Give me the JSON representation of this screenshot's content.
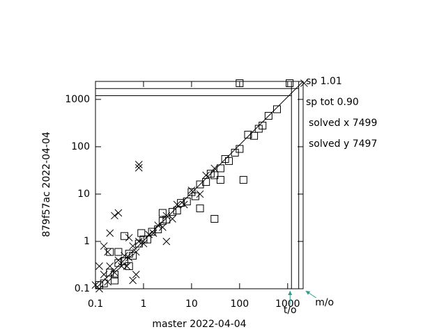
{
  "chart_data": {
    "type": "scatter",
    "xlabel": "master 2022-04-04",
    "ylabel": "879f57ac 2022-04-04",
    "log_scale": true,
    "xlim": [
      0.1,
      2100
    ],
    "ylim": [
      0.1,
      2400
    ],
    "xticks": [
      0.1,
      1,
      10,
      100,
      1000
    ],
    "yticks": [
      0.1,
      1,
      10,
      100,
      1000
    ],
    "timeout": 1200,
    "timeout_label": "t/o",
    "memout": 1700,
    "memout_label": "m/o",
    "annotations": [
      "sp 1.01",
      "sp tot 0.90",
      "solved x 7499",
      "solved y 7497"
    ],
    "series": [
      {
        "marker": "square",
        "color": "#000000",
        "x": [
          0.12,
          0.15,
          0.2,
          0.25,
          0.3,
          0.4,
          0.5,
          0.6,
          0.8,
          1,
          1.2,
          1.5,
          2,
          2.5,
          3,
          4,
          5,
          6,
          8,
          10,
          12,
          15,
          20,
          25,
          30,
          40,
          50,
          60,
          80,
          100,
          150,
          200,
          300,
          400,
          600,
          120,
          30,
          15,
          0.4,
          0.3,
          0.25,
          0.2,
          0.5,
          100,
          1100,
          0.9,
          2.5,
          40,
          250
        ],
        "values": [
          0.12,
          0.13,
          0.22,
          0.2,
          0.35,
          0.38,
          0.55,
          0.5,
          0.9,
          1.1,
          1.1,
          1.6,
          1.8,
          2.7,
          2.9,
          4.2,
          4.5,
          6.5,
          7,
          11,
          9,
          16,
          18,
          27,
          25,
          35,
          55,
          50,
          75,
          90,
          180,
          170,
          280,
          450,
          620,
          20,
          3,
          5,
          1.3,
          0.6,
          0.15,
          0.6,
          0.3,
          2200,
          2200,
          1.5,
          4,
          20,
          240
        ]
      },
      {
        "marker": "x",
        "color": "#000000",
        "x": [
          0.1,
          0.12,
          0.15,
          0.18,
          0.2,
          0.25,
          0.3,
          0.35,
          0.4,
          0.5,
          0.6,
          0.7,
          0.8,
          1,
          1.3,
          1.6,
          2,
          2.5,
          3,
          4,
          5,
          7,
          10,
          15,
          20,
          30,
          0.8,
          0.8,
          0.3,
          0.25,
          0.2,
          0.15,
          0.7,
          0.6,
          0.45,
          2200,
          3,
          0.12,
          0.18,
          0.5
        ],
        "values": [
          0.12,
          0.1,
          0.2,
          0.14,
          0.3,
          0.22,
          0.4,
          0.3,
          0.5,
          0.45,
          0.8,
          0.6,
          1,
          0.9,
          1.4,
          1.5,
          2.2,
          2,
          3.5,
          3,
          6,
          6,
          12,
          10,
          25,
          35,
          42,
          36,
          4,
          3.5,
          1.5,
          0.8,
          0.2,
          0.15,
          0.3,
          2200,
          1,
          0.3,
          0.6,
          1.2
        ]
      }
    ],
    "arrow_color": "#2a9d8f"
  }
}
